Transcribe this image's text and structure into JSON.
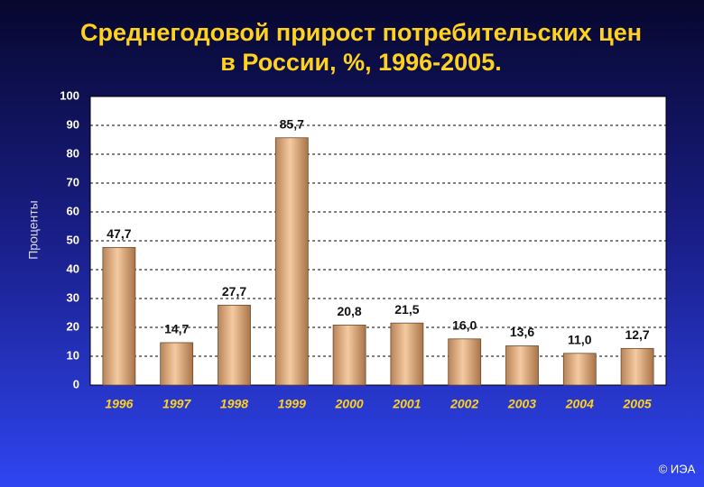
{
  "chart_data": {
    "type": "bar",
    "title": [
      "Среднегодовой прирост потребительских цен",
      "в России, %, 1996-2005."
    ],
    "y_label": "Проценты",
    "categories": [
      "1996",
      "1997",
      "1998",
      "1999",
      "2000",
      "2001",
      "2002",
      "2003",
      "2004",
      "2005"
    ],
    "values": [
      47.7,
      14.7,
      27.7,
      85.7,
      20.8,
      21.5,
      16.0,
      13.6,
      11.0,
      12.7
    ],
    "value_labels": [
      "47,7",
      "14,7",
      "27,7",
      "85,7",
      "20,8",
      "21,5",
      "16,0",
      "13,6",
      "11,0",
      "12,7"
    ],
    "color": "#f5caa0",
    "ylim": [
      0,
      100
    ],
    "yticks": [
      0,
      10,
      20,
      30,
      40,
      50,
      60,
      70,
      80,
      90,
      100
    ],
    "grid": true,
    "annotation": "© ИЭА"
  }
}
